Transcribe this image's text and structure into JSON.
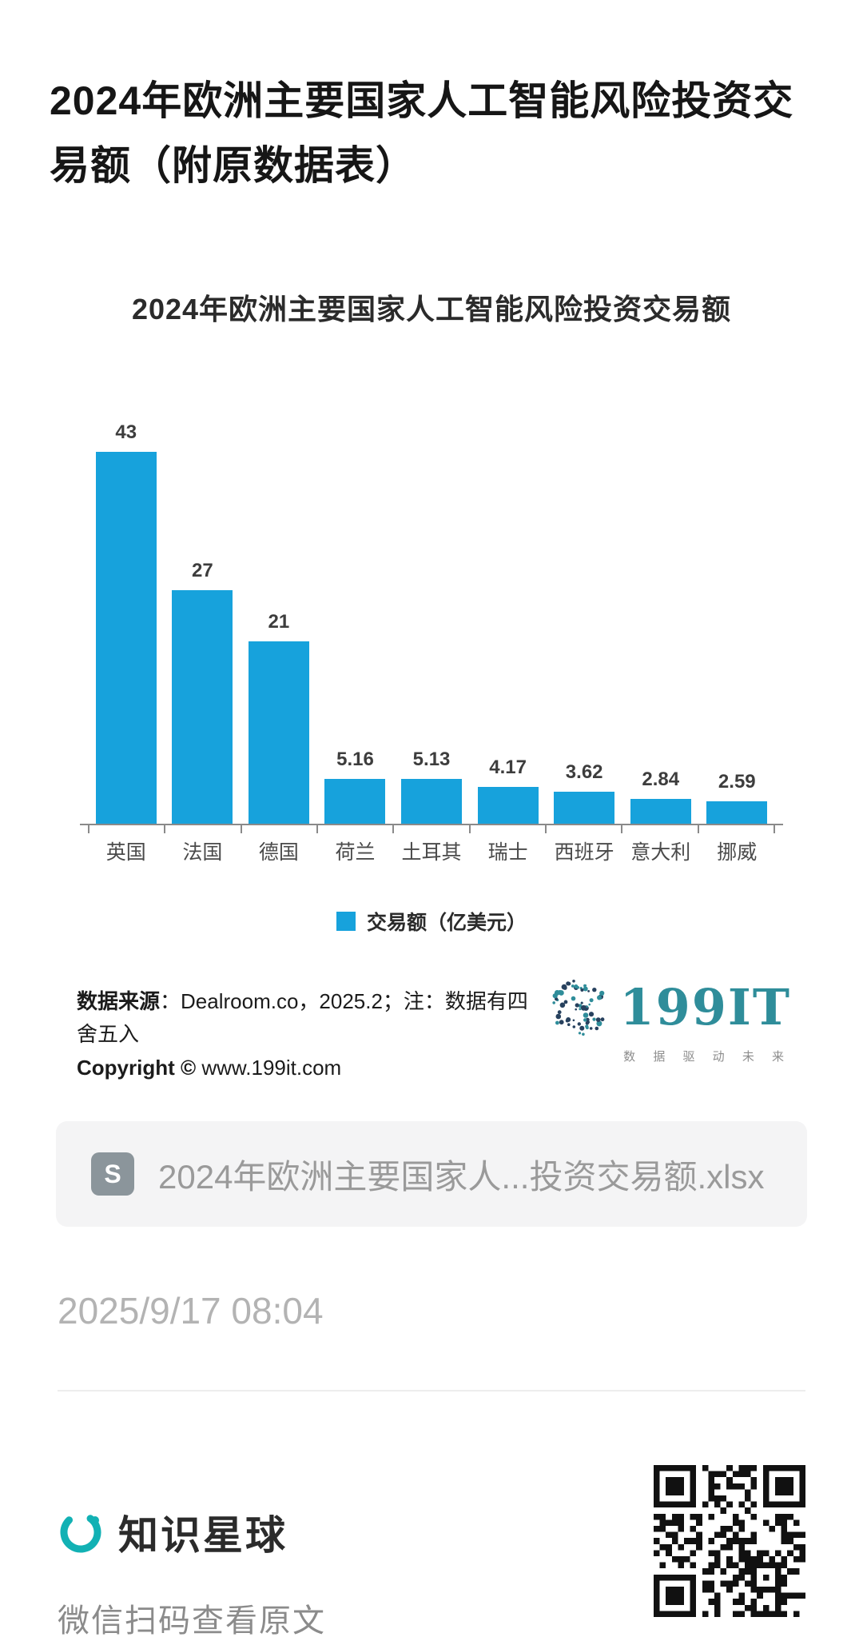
{
  "post": {
    "title": "2024年欧洲主要国家人工智能风险投资交\n易额（附原数据表）",
    "timestamp": "2025/9/17 08:04",
    "attachment": {
      "icon_label": "S",
      "filename": "2024年欧洲主要国家人...投资交易额.xlsx"
    },
    "footer": {
      "brand": "知识星球",
      "caption": "微信扫码查看原文"
    }
  },
  "chart_data": {
    "type": "bar",
    "title": "2024年欧洲主要国家人工智能风险投资交易额",
    "categories": [
      "英国",
      "法国",
      "德国",
      "荷兰",
      "土耳其",
      "瑞士",
      "西班牙",
      "意大利",
      "挪威"
    ],
    "values": [
      43,
      27,
      21,
      5.16,
      5.13,
      4.17,
      3.62,
      2.84,
      2.59
    ],
    "value_labels": [
      "43",
      "27",
      "21",
      "5.16",
      "5.13",
      "4.17",
      "3.62",
      "2.84",
      "2.59"
    ],
    "legend": [
      "交易额（亿美元）"
    ],
    "bar_color": "#17a2dc",
    "xlabel": "",
    "ylabel": "",
    "ylim": [
      0,
      45
    ],
    "grid": false,
    "legend_position": "bottom"
  },
  "source": {
    "line1_bold": "数据来源",
    "line1_rest": "：Dealroom.co，2025.2；注：数据有四舍五入",
    "line2_bold": "Copyright ©",
    "line2_rest": " www.199it.com"
  },
  "brand199it": {
    "name": "199IT",
    "tagline": "数 据 驱 动 未 来",
    "color": "#2f8d9a"
  }
}
